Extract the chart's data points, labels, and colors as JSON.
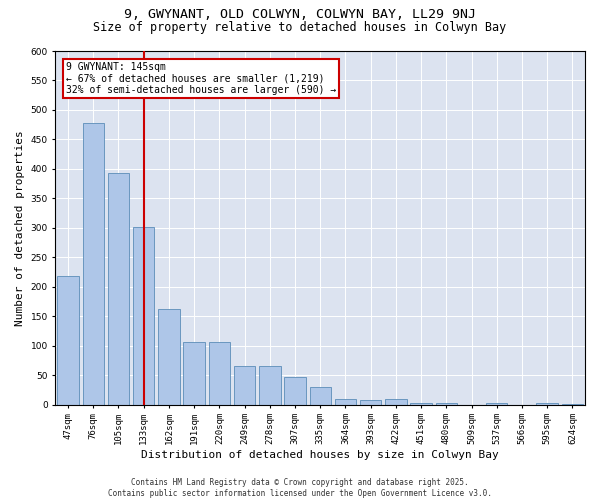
{
  "title_line1": "9, GWYNANT, OLD COLWYN, COLWYN BAY, LL29 9NJ",
  "title_line2": "Size of property relative to detached houses in Colwyn Bay",
  "xlabel": "Distribution of detached houses by size in Colwyn Bay",
  "ylabel": "Number of detached properties",
  "categories": [
    "47sqm",
    "76sqm",
    "105sqm",
    "133sqm",
    "162sqm",
    "191sqm",
    "220sqm",
    "249sqm",
    "278sqm",
    "307sqm",
    "335sqm",
    "364sqm",
    "393sqm",
    "422sqm",
    "451sqm",
    "480sqm",
    "509sqm",
    "537sqm",
    "566sqm",
    "595sqm",
    "624sqm"
  ],
  "values": [
    218,
    478,
    393,
    302,
    163,
    107,
    107,
    65,
    65,
    47,
    30,
    10,
    8,
    10,
    3,
    2,
    0,
    2,
    0,
    2,
    1
  ],
  "bar_color": "#aec6e8",
  "bar_edge_color": "#5b8db8",
  "vline_x": 3.0,
  "vline_color": "#cc0000",
  "annotation_box_text": "9 GWYNANT: 145sqm\n← 67% of detached houses are smaller (1,219)\n32% of semi-detached houses are larger (590) →",
  "box_edge_color": "#cc0000",
  "ylim": [
    0,
    600
  ],
  "yticks": [
    0,
    50,
    100,
    150,
    200,
    250,
    300,
    350,
    400,
    450,
    500,
    550,
    600
  ],
  "background_color": "#dce3f0",
  "grid_color": "#ffffff",
  "footer_text": "Contains HM Land Registry data © Crown copyright and database right 2025.\nContains public sector information licensed under the Open Government Licence v3.0.",
  "title_fontsize": 9.5,
  "subtitle_fontsize": 8.5,
  "xlabel_fontsize": 8,
  "ylabel_fontsize": 8,
  "tick_fontsize": 6.5,
  "annotation_fontsize": 7,
  "footer_fontsize": 5.5
}
